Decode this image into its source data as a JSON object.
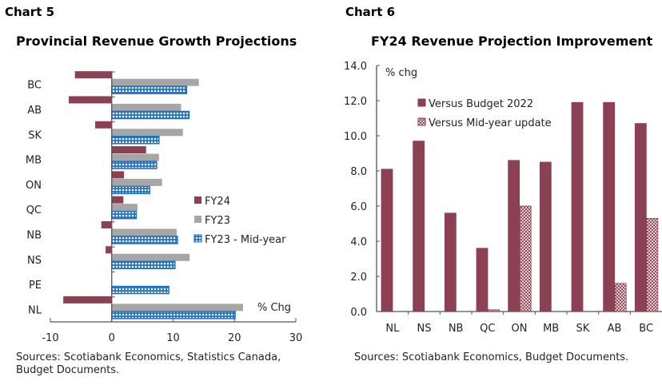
{
  "chart_data": [
    {
      "type": "bar",
      "orientation": "horizontal",
      "label": "Chart 5",
      "title": "Provincial Revenue Growth Projections",
      "categories": [
        "BC",
        "AB",
        "SK",
        "MB",
        "ON",
        "QC",
        "NB",
        "NS",
        "PE",
        "NL"
      ],
      "series": [
        {
          "name": "FY24",
          "color": "#8B4153",
          "values": [
            -6.0,
            -7.0,
            -2.7,
            5.6,
            2.0,
            1.9,
            -1.7,
            -1.0,
            null,
            -7.9
          ]
        },
        {
          "name": "FY23",
          "color": "#A6A6A6",
          "values": [
            14.2,
            11.3,
            11.6,
            7.7,
            8.2,
            4.2,
            10.6,
            12.7,
            null,
            21.4
          ]
        },
        {
          "name": "FY23 - Mid-year",
          "color": "#1F6FC4",
          "pattern": "dotted",
          "values": [
            12.2,
            12.6,
            7.7,
            7.3,
            6.2,
            4.0,
            10.7,
            10.3,
            9.3,
            20.1
          ]
        }
      ],
      "xlim": [
        -10,
        30
      ],
      "xticks": [
        "-10",
        "0",
        "10",
        "20",
        "30"
      ],
      "unit_label": "% Chg",
      "legend": "center-right",
      "source": "Sources: Scotiabank Economics, Statistics Canada, Budget Documents."
    },
    {
      "type": "bar",
      "label": "Chart 6",
      "title": "FY24 Revenue Projection Improvement",
      "categories": [
        "NL",
        "NS",
        "NB",
        "QC",
        "ON",
        "MB",
        "SK",
        "AB",
        "BC"
      ],
      "series": [
        {
          "name": "Versus Budget 2022",
          "color": "#8B4153",
          "values": [
            8.1,
            9.7,
            5.6,
            3.6,
            8.6,
            8.5,
            11.9,
            11.9,
            10.7
          ]
        },
        {
          "name": "Versus Mid-year update",
          "color": "#8B4153",
          "pattern": "crosshatch",
          "values": [
            null,
            null,
            null,
            0.1,
            6.0,
            null,
            null,
            1.6,
            5.3
          ]
        }
      ],
      "ylim": [
        0,
        14
      ],
      "yticks": [
        "0.0",
        "2.0",
        "4.0",
        "6.0",
        "8.0",
        "10.0",
        "12.0",
        "14.0"
      ],
      "unit_label": "% chg",
      "legend": "top-left",
      "source": "Sources: Scotiabank Economics, Budget Documents."
    }
  ]
}
